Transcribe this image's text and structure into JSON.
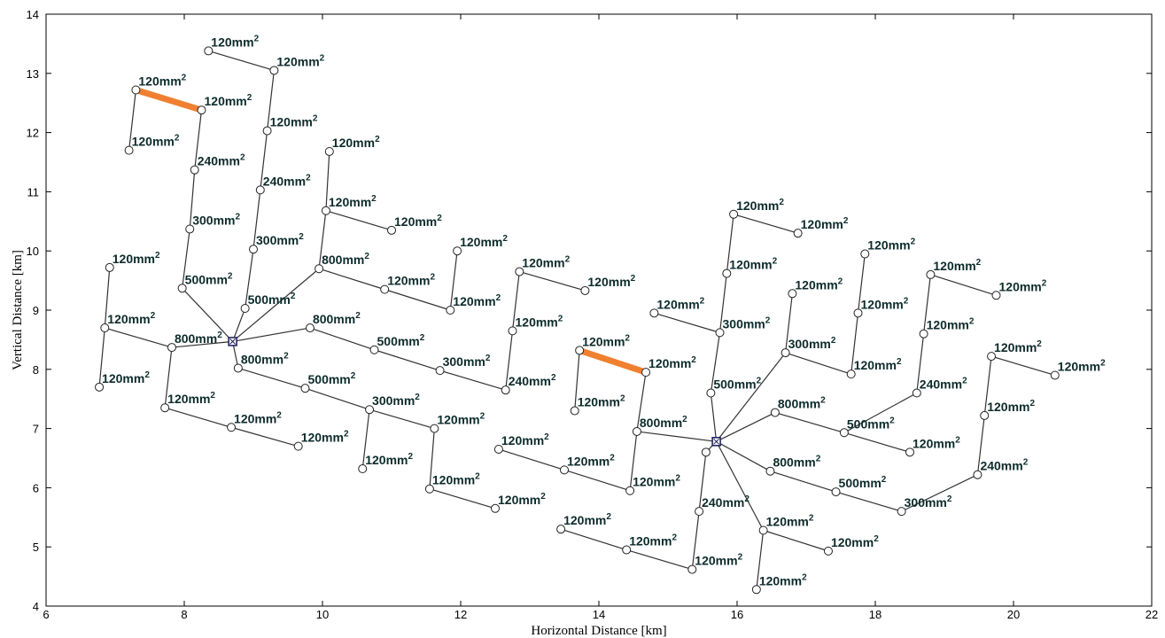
{
  "chart_data": {
    "type": "scatter",
    "title": "",
    "xlabel": "Horizontal Distance [km]",
    "ylabel": "Vertical Distance [km]",
    "xlim": [
      6,
      22
    ],
    "ylim": [
      4,
      14
    ],
    "xticks": [
      6,
      8,
      10,
      12,
      14,
      16,
      18,
      20,
      22
    ],
    "yticks": [
      4,
      5,
      6,
      7,
      8,
      9,
      10,
      11,
      12,
      13,
      14
    ],
    "grid": false,
    "label_unit": "mm",
    "label_sup": "2",
    "highlight_color": "#f08030",
    "line_color": "#333333",
    "substations": [
      {
        "x": 8.7,
        "y": 8.47
      },
      {
        "x": 15.7,
        "y": 6.78
      }
    ],
    "nodes": [
      {
        "id": "a1",
        "x": 7.3,
        "y": 12.72,
        "label": "120"
      },
      {
        "id": "a2",
        "x": 8.25,
        "y": 12.38,
        "label": "120"
      },
      {
        "id": "a3",
        "x": 7.2,
        "y": 11.7,
        "label": "120"
      },
      {
        "id": "a4",
        "x": 8.15,
        "y": 11.37,
        "label": "240"
      },
      {
        "id": "a5",
        "x": 8.08,
        "y": 10.37,
        "label": "300"
      },
      {
        "id": "a6",
        "x": 7.97,
        "y": 9.37,
        "label": "500"
      },
      {
        "id": "b1",
        "x": 8.35,
        "y": 13.38,
        "label": "120"
      },
      {
        "id": "b2",
        "x": 9.3,
        "y": 13.05,
        "label": "120"
      },
      {
        "id": "b3",
        "x": 9.2,
        "y": 12.03,
        "label": "120"
      },
      {
        "id": "b4",
        "x": 9.1,
        "y": 11.03,
        "label": "240"
      },
      {
        "id": "b5",
        "x": 9.0,
        "y": 10.03,
        "label": "300"
      },
      {
        "id": "b6",
        "x": 8.88,
        "y": 9.03,
        "label": "500"
      },
      {
        "id": "c1",
        "x": 10.1,
        "y": 11.68,
        "label": "120"
      },
      {
        "id": "c2",
        "x": 10.05,
        "y": 10.68,
        "label": "120"
      },
      {
        "id": "c3",
        "x": 11.0,
        "y": 10.35,
        "label": "120"
      },
      {
        "id": "c4",
        "x": 9.95,
        "y": 9.7,
        "label": "800"
      },
      {
        "id": "c5",
        "x": 10.9,
        "y": 9.35,
        "label": "120"
      },
      {
        "id": "c6",
        "x": 11.85,
        "y": 9.0,
        "label": "120"
      },
      {
        "id": "c7",
        "x": 11.95,
        "y": 10.0,
        "label": "120"
      },
      {
        "id": "d1",
        "x": 6.92,
        "y": 9.72,
        "label": "120"
      },
      {
        "id": "d2",
        "x": 6.85,
        "y": 8.7,
        "label": "120"
      },
      {
        "id": "d3",
        "x": 6.77,
        "y": 7.7,
        "label": "120"
      },
      {
        "id": "d4",
        "x": 7.82,
        "y": 8.37,
        "label": "800"
      },
      {
        "id": "d5",
        "x": 7.72,
        "y": 7.35,
        "label": "120"
      },
      {
        "id": "d6",
        "x": 8.68,
        "y": 7.02,
        "label": "120"
      },
      {
        "id": "d7",
        "x": 9.65,
        "y": 6.7,
        "label": "120"
      },
      {
        "id": "e1",
        "x": 9.82,
        "y": 8.7,
        "label": "800"
      },
      {
        "id": "e2",
        "x": 10.75,
        "y": 8.33,
        "label": "500"
      },
      {
        "id": "e3",
        "x": 11.7,
        "y": 7.98,
        "label": "300"
      },
      {
        "id": "e4",
        "x": 12.65,
        "y": 7.65,
        "label": "240"
      },
      {
        "id": "e5",
        "x": 12.75,
        "y": 8.65,
        "label": "120"
      },
      {
        "id": "e6",
        "x": 12.85,
        "y": 9.65,
        "label": "120"
      },
      {
        "id": "e7",
        "x": 13.8,
        "y": 9.33,
        "label": "120"
      },
      {
        "id": "f1",
        "x": 8.78,
        "y": 8.02,
        "label": "800"
      },
      {
        "id": "f2",
        "x": 9.75,
        "y": 7.68,
        "label": "500"
      },
      {
        "id": "f3",
        "x": 10.68,
        "y": 7.32,
        "label": "300"
      },
      {
        "id": "f4",
        "x": 10.58,
        "y": 6.32,
        "label": "120"
      },
      {
        "id": "f5",
        "x": 11.62,
        "y": 7.0,
        "label": "120"
      },
      {
        "id": "f6",
        "x": 11.55,
        "y": 5.98,
        "label": "120"
      },
      {
        "id": "f7",
        "x": 12.5,
        "y": 5.65,
        "label": "120"
      },
      {
        "id": "g1",
        "x": 13.72,
        "y": 8.32,
        "label": "120"
      },
      {
        "id": "g2",
        "x": 14.68,
        "y": 7.95,
        "label": "120"
      },
      {
        "id": "g3",
        "x": 13.65,
        "y": 7.3,
        "label": "120"
      },
      {
        "id": "g4",
        "x": 14.55,
        "y": 6.95,
        "label": "800"
      },
      {
        "id": "g5",
        "x": 14.45,
        "y": 5.95,
        "label": "120"
      },
      {
        "id": "g6",
        "x": 13.5,
        "y": 6.3,
        "label": "120"
      },
      {
        "id": "g7",
        "x": 12.55,
        "y": 6.65,
        "label": "120"
      },
      {
        "id": "h1",
        "x": 13.45,
        "y": 5.3,
        "label": "120"
      },
      {
        "id": "h2",
        "x": 14.4,
        "y": 4.95,
        "label": "120"
      },
      {
        "id": "h3",
        "x": 15.35,
        "y": 4.62,
        "label": "120"
      },
      {
        "id": "h4",
        "x": 15.45,
        "y": 5.6,
        "label": "240"
      },
      {
        "id": "h5",
        "x": 15.55,
        "y": 6.6,
        "label": ""
      },
      {
        "id": "i1",
        "x": 14.8,
        "y": 8.95,
        "label": "120"
      },
      {
        "id": "i2",
        "x": 15.75,
        "y": 8.62,
        "label": "300"
      },
      {
        "id": "i3",
        "x": 15.62,
        "y": 7.6,
        "label": "500"
      },
      {
        "id": "i4",
        "x": 15.85,
        "y": 9.62,
        "label": "120"
      },
      {
        "id": "i5",
        "x": 15.95,
        "y": 10.62,
        "label": "120"
      },
      {
        "id": "i6",
        "x": 16.88,
        "y": 10.3,
        "label": "120"
      },
      {
        "id": "j1",
        "x": 16.7,
        "y": 8.28,
        "label": "300"
      },
      {
        "id": "j2",
        "x": 16.8,
        "y": 9.28,
        "label": "120"
      },
      {
        "id": "j3",
        "x": 17.65,
        "y": 7.92,
        "label": "120"
      },
      {
        "id": "j4",
        "x": 17.75,
        "y": 8.95,
        "label": "120"
      },
      {
        "id": "j5",
        "x": 17.85,
        "y": 9.95,
        "label": "120"
      },
      {
        "id": "k1",
        "x": 16.55,
        "y": 7.27,
        "label": "800"
      },
      {
        "id": "k2",
        "x": 17.55,
        "y": 6.93,
        "label": "500"
      },
      {
        "id": "k3",
        "x": 18.5,
        "y": 6.6,
        "label": "120"
      },
      {
        "id": "k4",
        "x": 18.6,
        "y": 7.6,
        "label": "240"
      },
      {
        "id": "k5",
        "x": 18.7,
        "y": 8.6,
        "label": "120"
      },
      {
        "id": "k6",
        "x": 18.8,
        "y": 9.6,
        "label": "120"
      },
      {
        "id": "k7",
        "x": 19.75,
        "y": 9.25,
        "label": "120"
      },
      {
        "id": "l1",
        "x": 16.48,
        "y": 6.28,
        "label": "800"
      },
      {
        "id": "l2",
        "x": 17.43,
        "y": 5.93,
        "label": "500"
      },
      {
        "id": "l3",
        "x": 18.38,
        "y": 5.6,
        "label": "300"
      },
      {
        "id": "l4",
        "x": 19.48,
        "y": 6.22,
        "label": "240"
      },
      {
        "id": "l5",
        "x": 19.58,
        "y": 7.22,
        "label": "120"
      },
      {
        "id": "l6",
        "x": 19.68,
        "y": 8.22,
        "label": "120"
      },
      {
        "id": "l7",
        "x": 20.6,
        "y": 7.9,
        "label": "120"
      },
      {
        "id": "m1",
        "x": 16.38,
        "y": 5.28,
        "label": "120"
      },
      {
        "id": "m2",
        "x": 17.32,
        "y": 4.93,
        "label": "120"
      },
      {
        "id": "m3",
        "x": 16.28,
        "y": 4.28,
        "label": "120"
      }
    ],
    "edges": [
      [
        "a1",
        "a3"
      ],
      [
        "a2",
        "a4"
      ],
      [
        "a4",
        "a5"
      ],
      [
        "a5",
        "a6"
      ],
      [
        "a6",
        "S1"
      ],
      [
        "b1",
        "b2"
      ],
      [
        "b2",
        "b3"
      ],
      [
        "b3",
        "b4"
      ],
      [
        "b4",
        "b5"
      ],
      [
        "b5",
        "b6"
      ],
      [
        "b6",
        "S1"
      ],
      [
        "c1",
        "c2"
      ],
      [
        "c2",
        "c3"
      ],
      [
        "c2",
        "c4"
      ],
      [
        "c4",
        "S1"
      ],
      [
        "c4",
        "c5"
      ],
      [
        "c5",
        "c6"
      ],
      [
        "c6",
        "c7"
      ],
      [
        "d1",
        "d2"
      ],
      [
        "d2",
        "d3"
      ],
      [
        "d2",
        "d4"
      ],
      [
        "d4",
        "S1"
      ],
      [
        "d4",
        "d5"
      ],
      [
        "d5",
        "d6"
      ],
      [
        "d6",
        "d7"
      ],
      [
        "S1",
        "e1"
      ],
      [
        "e1",
        "e2"
      ],
      [
        "e2",
        "e3"
      ],
      [
        "e3",
        "e4"
      ],
      [
        "e4",
        "e5"
      ],
      [
        "e5",
        "e6"
      ],
      [
        "e6",
        "e7"
      ],
      [
        "S1",
        "f1"
      ],
      [
        "f1",
        "f2"
      ],
      [
        "f2",
        "f3"
      ],
      [
        "f3",
        "f4"
      ],
      [
        "f3",
        "f5"
      ],
      [
        "f5",
        "f6"
      ],
      [
        "f6",
        "f7"
      ],
      [
        "g1",
        "g3"
      ],
      [
        "g2",
        "g4"
      ],
      [
        "g4",
        "S2"
      ],
      [
        "g4",
        "g5"
      ],
      [
        "g5",
        "g6"
      ],
      [
        "g6",
        "g7"
      ],
      [
        "h1",
        "h2"
      ],
      [
        "h2",
        "h3"
      ],
      [
        "h3",
        "h4"
      ],
      [
        "h4",
        "h5"
      ],
      [
        "h5",
        "S2"
      ],
      [
        "i1",
        "i2"
      ],
      [
        "i2",
        "i3"
      ],
      [
        "i3",
        "S2"
      ],
      [
        "i2",
        "i4"
      ],
      [
        "i4",
        "i5"
      ],
      [
        "i5",
        "i6"
      ],
      [
        "S2",
        "j1"
      ],
      [
        "j1",
        "j2"
      ],
      [
        "j1",
        "j3"
      ],
      [
        "j3",
        "j4"
      ],
      [
        "j4",
        "j5"
      ],
      [
        "S2",
        "k1"
      ],
      [
        "k1",
        "k2"
      ],
      [
        "k2",
        "k3"
      ],
      [
        "k2",
        "k4"
      ],
      [
        "k4",
        "k5"
      ],
      [
        "k5",
        "k6"
      ],
      [
        "k6",
        "k7"
      ],
      [
        "S2",
        "l1"
      ],
      [
        "l1",
        "l2"
      ],
      [
        "l2",
        "l3"
      ],
      [
        "l3",
        "l4"
      ],
      [
        "l4",
        "l5"
      ],
      [
        "l5",
        "l6"
      ],
      [
        "l6",
        "l7"
      ],
      [
        "S2",
        "m1"
      ],
      [
        "m1",
        "m2"
      ],
      [
        "m1",
        "m3"
      ]
    ],
    "highlighted_edges": [
      [
        "a1",
        "a2"
      ],
      [
        "g1",
        "g2"
      ]
    ]
  }
}
